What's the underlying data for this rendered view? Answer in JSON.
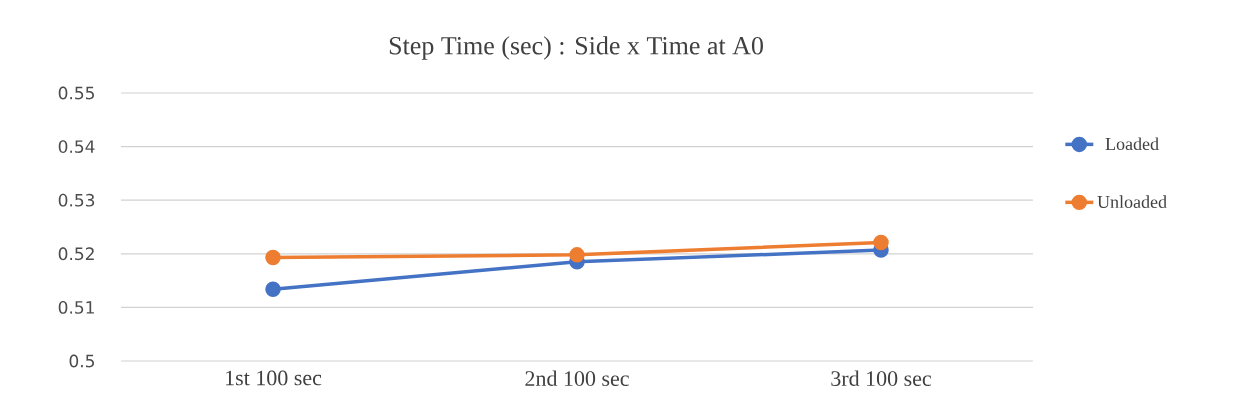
{
  "chart_data": {
    "type": "line",
    "title": "Step Time (sec) : Side x Time at A0",
    "categories": [
      "1st 100 sec",
      "2nd 100 sec",
      "3rd 100 sec"
    ],
    "series": [
      {
        "name": "Loaded",
        "color": "#4472c4",
        "values": [
          0.5134,
          0.5185,
          0.5207
        ]
      },
      {
        "name": "Unloaded",
        "color": "#ed7d31",
        "values": [
          0.5193,
          0.5198,
          0.5221
        ]
      }
    ],
    "ylim": [
      0.5,
      0.55
    ],
    "yticks": [
      0.5,
      0.51,
      0.52,
      0.53,
      0.54,
      0.55
    ],
    "grid": "y",
    "legend": "right",
    "marker": "circle"
  }
}
